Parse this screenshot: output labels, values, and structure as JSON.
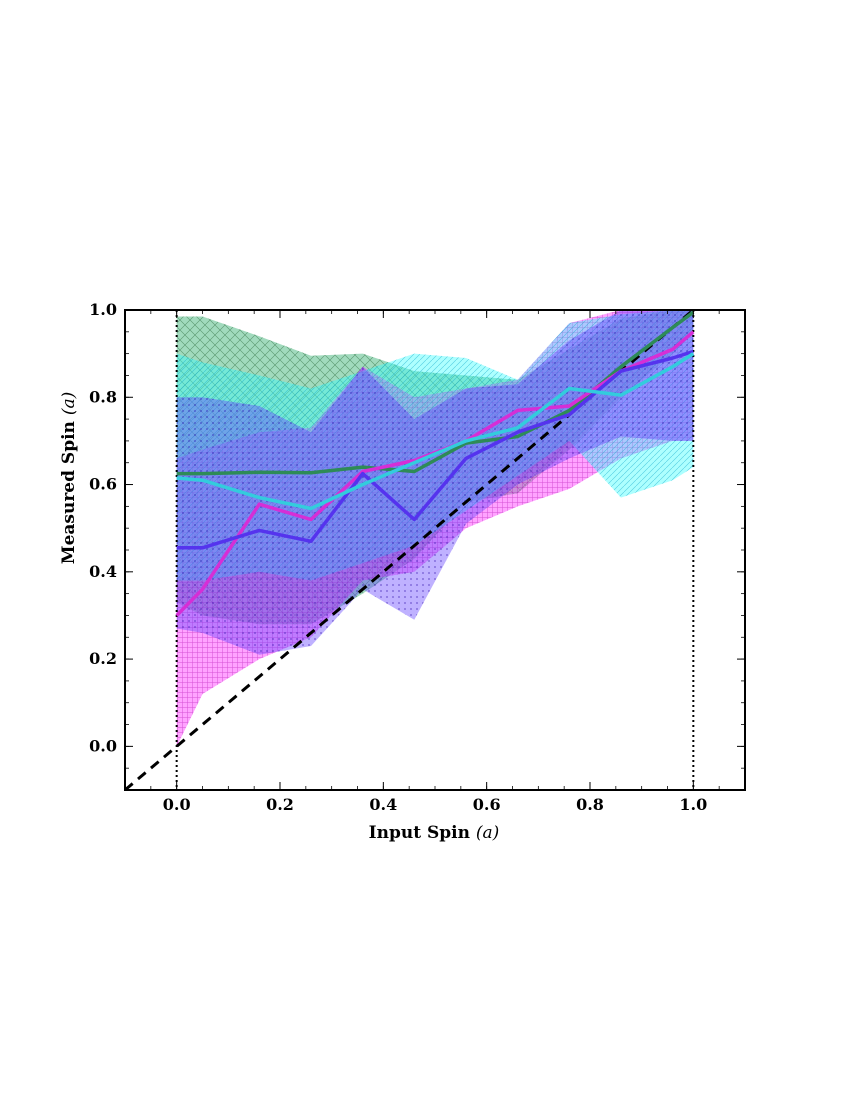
{
  "chart_data": {
    "type": "line",
    "title": "",
    "xlabel": "Input Spin",
    "ylabel": "Measured Spin",
    "label_symbol": "(a)",
    "xlim": [
      -0.1,
      1.1
    ],
    "ylim": [
      -0.1,
      1.0
    ],
    "x_ticks": [
      0.0,
      0.2,
      0.4,
      0.6,
      0.8,
      1.0
    ],
    "y_ticks": [
      0.0,
      0.2,
      0.4,
      0.6,
      0.8,
      1.0
    ],
    "x_tick_labels": [
      "0.0",
      "0.2",
      "0.4",
      "0.6",
      "0.8",
      "1.0"
    ],
    "y_tick_labels": [
      "0.0",
      "0.2",
      "0.4",
      "0.6",
      "0.8",
      "1.0"
    ],
    "grid": false,
    "legend": "none",
    "x": [
      0.0,
      0.05,
      0.16,
      0.26,
      0.36,
      0.46,
      0.56,
      0.66,
      0.76,
      0.86,
      0.96,
      1.0
    ],
    "series": [
      {
        "color": "#d62ed6",
        "band_color": "#ff33ff",
        "values": [
          0.3,
          0.36,
          0.555,
          0.52,
          0.63,
          0.655,
          0.7,
          0.77,
          0.78,
          0.86,
          0.91,
          0.95
        ],
        "band_low": [
          0.0,
          0.12,
          0.2,
          0.25,
          0.38,
          0.4,
          0.5,
          0.55,
          0.59,
          0.66,
          0.7,
          0.7
        ],
        "band_high": [
          0.66,
          0.68,
          0.72,
          0.73,
          0.87,
          0.8,
          0.82,
          0.84,
          0.97,
          1.0,
          1.0,
          1.0
        ]
      },
      {
        "color": "#5533ee",
        "band_color": "#6644ff",
        "values": [
          0.455,
          0.455,
          0.495,
          0.47,
          0.625,
          0.52,
          0.66,
          0.72,
          0.76,
          0.86,
          0.89,
          0.905
        ],
        "band_low": [
          0.27,
          0.26,
          0.21,
          0.23,
          0.36,
          0.29,
          0.51,
          0.6,
          0.66,
          0.71,
          0.7,
          0.7
        ],
        "band_high": [
          0.8,
          0.8,
          0.78,
          0.72,
          0.87,
          0.75,
          0.82,
          0.83,
          0.93,
          1.0,
          1.0,
          1.0
        ]
      },
      {
        "color": "#2e8b57",
        "band_color": "#2fae6c",
        "values": [
          0.625,
          0.625,
          0.628,
          0.627,
          0.64,
          0.63,
          0.695,
          0.71,
          0.77,
          0.87,
          0.96,
          0.995
        ],
        "band_low": [
          0.33,
          0.3,
          0.28,
          0.28,
          0.35,
          0.43,
          0.56,
          0.58,
          0.68,
          0.8,
          0.9,
          0.95
        ],
        "band_high": [
          0.985,
          0.985,
          0.94,
          0.895,
          0.9,
          0.86,
          0.85,
          0.84,
          0.91,
          0.98,
          1.0,
          1.0
        ]
      },
      {
        "color": "#33ccdd",
        "band_color": "#33ffff",
        "values": [
          0.615,
          0.61,
          0.57,
          0.545,
          0.6,
          0.65,
          0.7,
          0.73,
          0.82,
          0.805,
          0.87,
          0.9
        ],
        "band_low": [
          0.38,
          0.38,
          0.4,
          0.38,
          0.42,
          0.46,
          0.54,
          0.62,
          0.7,
          0.57,
          0.61,
          0.64
        ],
        "band_high": [
          0.9,
          0.88,
          0.85,
          0.82,
          0.86,
          0.9,
          0.89,
          0.84,
          0.97,
          0.99,
          1.0,
          1.0
        ]
      }
    ],
    "reference_line": {
      "label": "",
      "x": [
        -0.1,
        1.0
      ],
      "y": [
        -0.1,
        1.0
      ],
      "style": "dashed",
      "color": "#000000"
    },
    "vertical_markers": [
      0.0,
      1.0
    ]
  }
}
